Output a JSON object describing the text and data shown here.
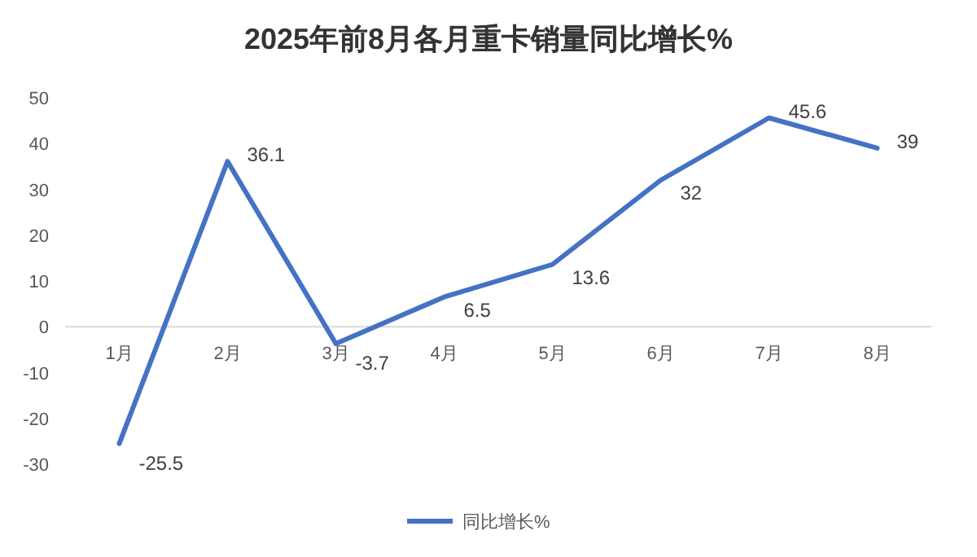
{
  "chart_data": {
    "type": "line",
    "title": "2025年前8月各月重卡销量同比增长%",
    "categories": [
      "1月",
      "2月",
      "3月",
      "4月",
      "5月",
      "6月",
      "7月",
      "8月"
    ],
    "series": [
      {
        "name": "同比增长%",
        "color": "#4472c4",
        "values": [
          -25.5,
          36.1,
          -3.7,
          6.5,
          13.6,
          32,
          45.6,
          39
        ]
      }
    ],
    "ylim": [
      -30,
      50
    ],
    "yticks": [
      -30,
      -20,
      -10,
      0,
      10,
      20,
      30,
      40,
      50
    ],
    "grid": false,
    "legend": "bottom",
    "data_labels": true,
    "marker": "none",
    "line_style": "solid"
  }
}
